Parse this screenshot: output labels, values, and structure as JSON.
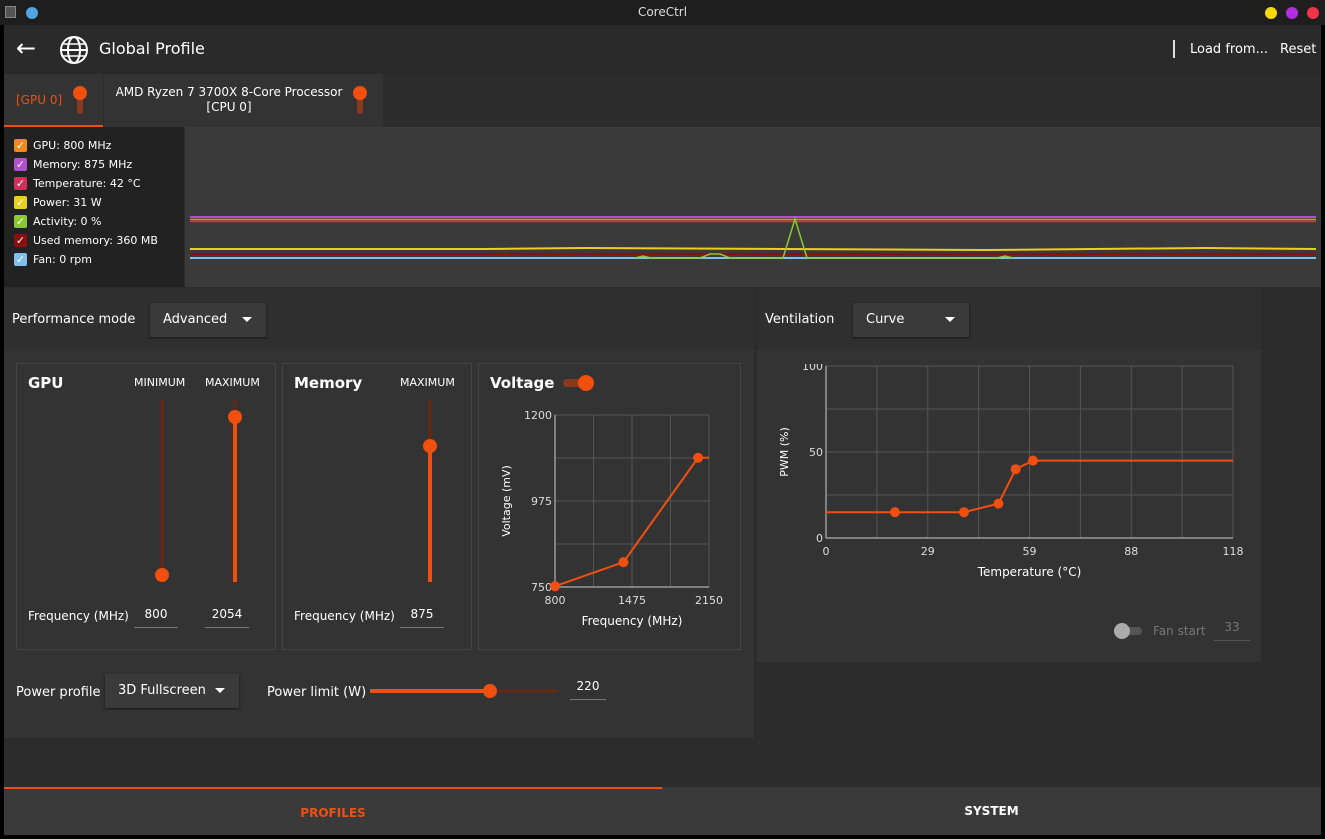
{
  "window": {
    "title": "CoreCtrl"
  },
  "titlebar": {
    "left_dot_color": "#4fa3e0",
    "right_dots": [
      "#f5d90a",
      "#b22ee0",
      "#f0344a"
    ]
  },
  "header": {
    "back_icon": "back-arrow-icon",
    "globe_icon": "globe-icon",
    "title": "Global Profile",
    "load_label": "Load from...",
    "reset_label": "Reset"
  },
  "tabs": [
    {
      "label": "[GPU 0]",
      "active": true,
      "enabled": true
    },
    {
      "label_line1": "AMD Ryzen 7 3700X 8-Core Processor",
      "label_line2": "[CPU 0]",
      "active": false,
      "enabled": true
    }
  ],
  "sensors": [
    {
      "label": "GPU: 800 MHz",
      "color": "#f08a1c",
      "checked": true
    },
    {
      "label": "Memory: 875 MHz",
      "color": "#b050d0",
      "checked": true
    },
    {
      "label": "Temperature: 42 °C",
      "color": "#d0305a",
      "checked": true
    },
    {
      "label": "Power: 31 W",
      "color": "#e8d020",
      "checked": true
    },
    {
      "label": "Activity: 0 %",
      "color": "#8cc832",
      "checked": true
    },
    {
      "label": "Used memory: 360 MB",
      "color": "#8a1010",
      "checked": true
    },
    {
      "label": "Fan: 0 rpm",
      "color": "#80c0ea",
      "checked": true
    }
  ],
  "performance": {
    "mode_label": "Performance mode",
    "mode_value": "Advanced",
    "gpu": {
      "title": "GPU",
      "min_label": "MINIMUM",
      "max_label": "MAXIMUM",
      "freq_label": "Frequency (MHz)",
      "min_value": "800",
      "max_value": "2054",
      "min_fraction": 0.0,
      "max_fraction": 0.94
    },
    "memory": {
      "title": "Memory",
      "max_label": "MAXIMUM",
      "freq_label": "Frequency (MHz)",
      "max_value": "875",
      "max_fraction": 0.77
    },
    "voltage": {
      "title": "Voltage",
      "enabled": true
    },
    "power_profile_label": "Power profile",
    "power_profile_value": "3D Fullscreen",
    "power_limit_label": "Power limit (W)",
    "power_limit_value": "220",
    "power_limit_fraction": 0.65
  },
  "ventilation": {
    "label": "Ventilation",
    "mode_value": "Curve",
    "fan_start_label": "Fan start",
    "fan_start_value": "33",
    "fan_start_enabled": false
  },
  "bottom_tabs": [
    {
      "label": "PROFILES",
      "active": true
    },
    {
      "label": "SYSTEM",
      "active": false
    }
  ],
  "chart_data": [
    {
      "type": "line",
      "xlabel": "Frequency (MHz)",
      "ylabel": "Voltage (mV)",
      "xlim": [
        800,
        2150
      ],
      "ylim": [
        750,
        1200
      ],
      "x_ticks": [
        "800",
        "1475",
        "2150"
      ],
      "y_ticks": [
        "750",
        "975",
        "1200"
      ],
      "series": [
        {
          "points": [
            [
              800,
              752
            ],
            [
              1400,
              815
            ],
            [
              2054,
              1088
            ],
            [
              2150,
              1088
            ]
          ]
        }
      ],
      "grid": true
    },
    {
      "type": "line",
      "xlabel": "Temperature (°C)",
      "ylabel": "PWM (%)",
      "xlim": [
        0,
        118
      ],
      "ylim": [
        0,
        100
      ],
      "x_ticks": [
        "0",
        "29",
        "59",
        "88",
        "118"
      ],
      "y_ticks": [
        "0",
        "50",
        "100"
      ],
      "series": [
        {
          "points": [
            [
              0,
              15
            ],
            [
              20,
              15
            ],
            [
              40,
              15
            ],
            [
              50,
              20
            ],
            [
              55,
              40
            ],
            [
              60,
              45
            ],
            [
              118,
              45
            ]
          ]
        }
      ],
      "grid": true
    }
  ],
  "theme": {
    "accent": "#f04f0f"
  }
}
